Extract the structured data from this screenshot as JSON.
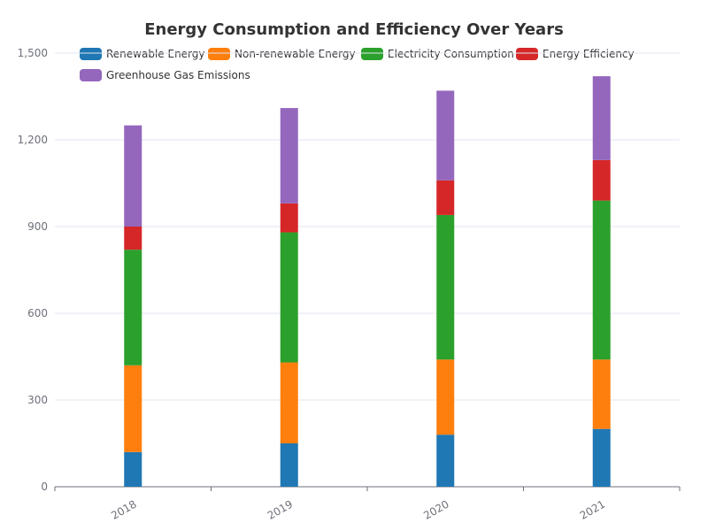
{
  "chart_data": {
    "type": "bar",
    "stacked": true,
    "title": "Energy Consumption and Efficiency Over Years",
    "categories": [
      "2018",
      "2019",
      "2020",
      "2021"
    ],
    "series": [
      {
        "name": "Renewable Energy",
        "color": "#1f77b4",
        "values": [
          120,
          150,
          180,
          200
        ]
      },
      {
        "name": "Non-renewable Energy",
        "color": "#ff7f0e",
        "values": [
          300,
          280,
          260,
          240
        ]
      },
      {
        "name": "Electricity Consumption",
        "color": "#2ca02c",
        "values": [
          400,
          450,
          500,
          550
        ]
      },
      {
        "name": "Energy Efficiency",
        "color": "#d62728",
        "values": [
          80,
          100,
          120,
          140
        ]
      },
      {
        "name": "Greenhouse Gas Emissions",
        "color": "#9467bd",
        "values": [
          350,
          330,
          310,
          290
        ]
      }
    ],
    "y_ticks": [
      "0",
      "300",
      "600",
      "900",
      "1,200",
      "1,500"
    ],
    "ylim": [
      0,
      1500
    ],
    "grid": true,
    "legend_position": "top"
  }
}
